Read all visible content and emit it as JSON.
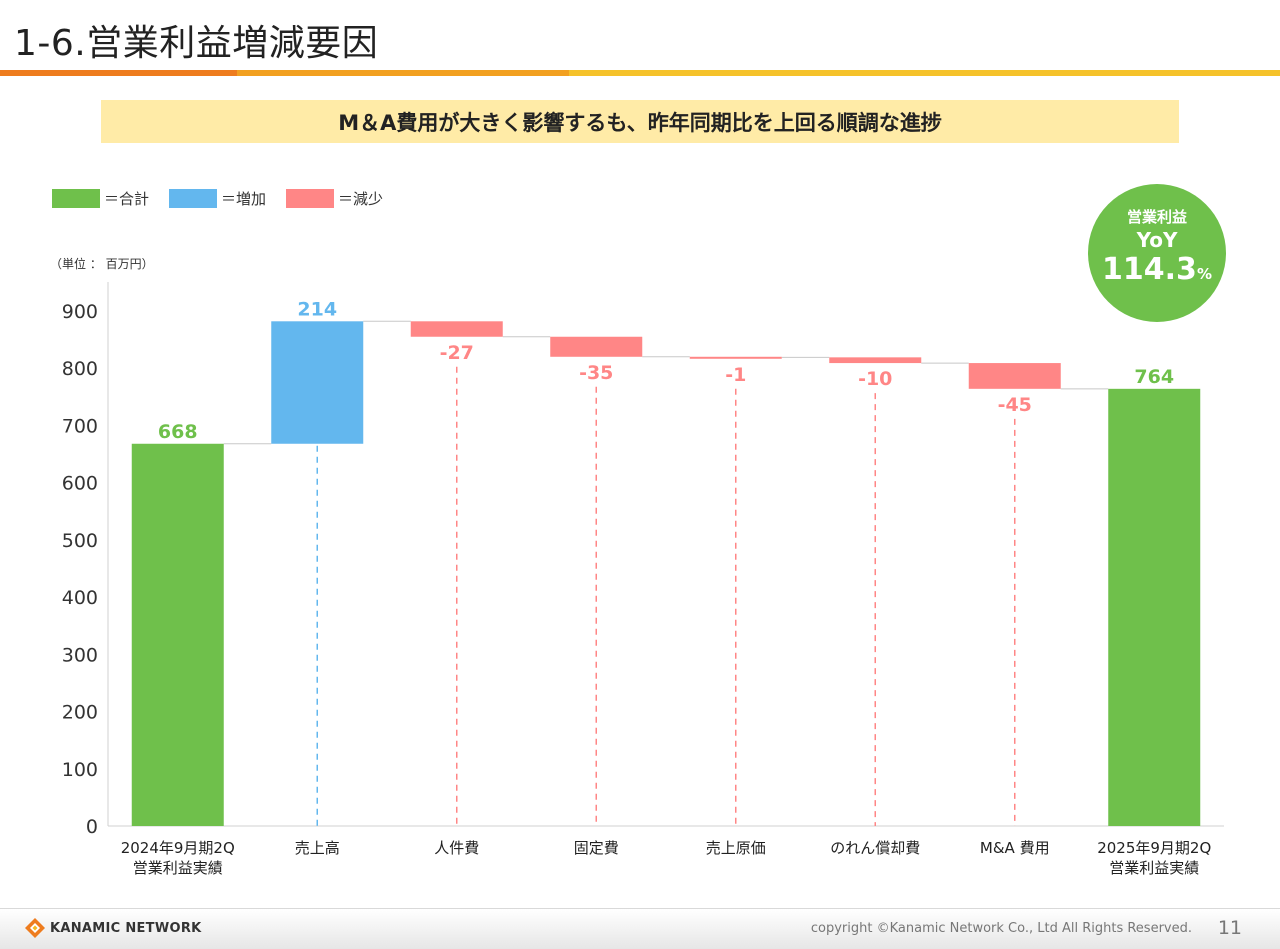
{
  "page": {
    "title": "1-6.営業利益増減要因",
    "headline": "M＆A費用が大きく影響するも、昨年同期比を上回る順調な進捗",
    "unit_label": "（単位 ： 百万円）"
  },
  "legend": [
    {
      "label": "＝合計",
      "color": "#6FC04B"
    },
    {
      "label": "＝増加",
      "color": "#63B7EE"
    },
    {
      "label": "＝減少",
      "color": "#FF8686"
    }
  ],
  "yoy": {
    "label": "営業利益",
    "sub": "YoY",
    "value": "114.3",
    "unit": "%"
  },
  "colors": {
    "total": "#6FC04B",
    "increase": "#63B7EE",
    "decrease": "#FF8686",
    "accent_orange": "#EE7C1E",
    "accent_yellow": "#F5B922"
  },
  "chart_data": {
    "type": "bar",
    "subtype": "waterfall",
    "ylim": [
      0,
      900
    ],
    "yticks": [
      0,
      100,
      200,
      300,
      400,
      500,
      600,
      700,
      800,
      900
    ],
    "items": [
      {
        "label": [
          "2024年9月期2Q",
          "営業利益実績"
        ],
        "kind": "total",
        "value": 668,
        "display": "668"
      },
      {
        "label": [
          "売上高"
        ],
        "kind": "increase",
        "value": 214,
        "display": "214"
      },
      {
        "label": [
          "人件費"
        ],
        "kind": "decrease",
        "value": -27,
        "display": "-27"
      },
      {
        "label": [
          "固定費"
        ],
        "kind": "decrease",
        "value": -35,
        "display": "-35"
      },
      {
        "label": [
          "売上原価"
        ],
        "kind": "decrease",
        "value": -1,
        "display": "-1"
      },
      {
        "label": [
          "のれん償却費"
        ],
        "kind": "decrease",
        "value": -10,
        "display": "-10"
      },
      {
        "label": [
          "M&A 費用"
        ],
        "kind": "decrease",
        "value": -45,
        "display": "-45"
      },
      {
        "label": [
          "2025年9月期2Q",
          "営業利益実績"
        ],
        "kind": "total",
        "value": 764,
        "display": "764"
      }
    ]
  },
  "footer": {
    "logo_text": "KANAMIC NETWORK",
    "copyright": "copyright ©Kanamic Network Co., Ltd All Rights Reserved.",
    "page_number": "11"
  }
}
